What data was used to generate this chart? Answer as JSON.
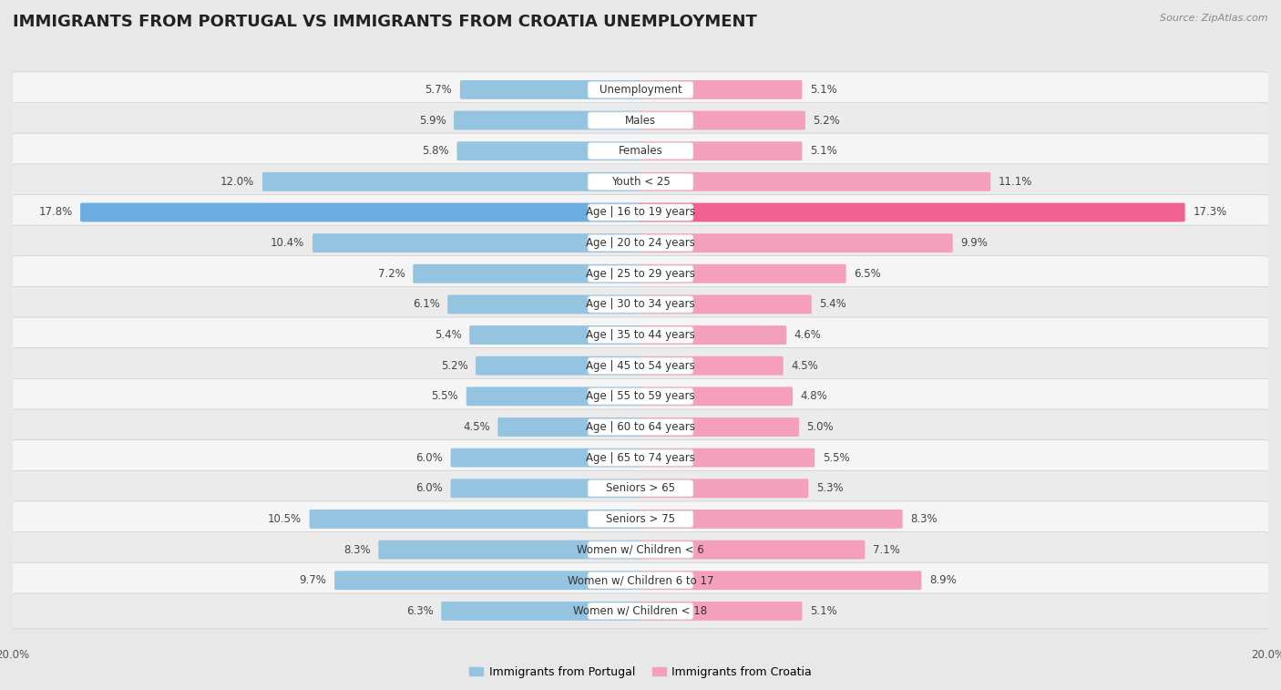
{
  "title": "IMMIGRANTS FROM PORTUGAL VS IMMIGRANTS FROM CROATIA UNEMPLOYMENT",
  "source": "Source: ZipAtlas.com",
  "categories": [
    "Unemployment",
    "Males",
    "Females",
    "Youth < 25",
    "Age | 16 to 19 years",
    "Age | 20 to 24 years",
    "Age | 25 to 29 years",
    "Age | 30 to 34 years",
    "Age | 35 to 44 years",
    "Age | 45 to 54 years",
    "Age | 55 to 59 years",
    "Age | 60 to 64 years",
    "Age | 65 to 74 years",
    "Seniors > 65",
    "Seniors > 75",
    "Women w/ Children < 6",
    "Women w/ Children 6 to 17",
    "Women w/ Children < 18"
  ],
  "portugal_values": [
    5.7,
    5.9,
    5.8,
    12.0,
    17.8,
    10.4,
    7.2,
    6.1,
    5.4,
    5.2,
    5.5,
    4.5,
    6.0,
    6.0,
    10.5,
    8.3,
    9.7,
    6.3
  ],
  "croatia_values": [
    5.1,
    5.2,
    5.1,
    11.1,
    17.3,
    9.9,
    6.5,
    5.4,
    4.6,
    4.5,
    4.8,
    5.0,
    5.5,
    5.3,
    8.3,
    7.1,
    8.9,
    5.1
  ],
  "portugal_color": "#94c4e0",
  "croatia_color": "#f4a0bc",
  "portugal_color_bright": "#6aade0",
  "croatia_color_bright": "#f06090",
  "background_color": "#e8e8e8",
  "row_color_odd": "#f5f5f5",
  "row_color_even": "#ebebeb",
  "max_value": 20.0,
  "legend_portugal": "Immigrants from Portugal",
  "legend_croatia": "Immigrants from Croatia",
  "title_fontsize": 13,
  "label_fontsize": 8.5,
  "value_fontsize": 8.5
}
